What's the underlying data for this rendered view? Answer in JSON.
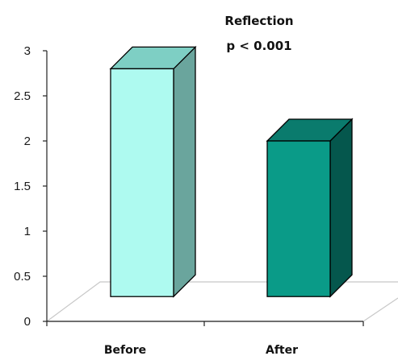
{
  "chart_data": {
    "type": "bar",
    "title": "Reflection",
    "subtitle": "p < 0.001",
    "categories": [
      "Before",
      "After"
    ],
    "values": [
      2.8,
      2.0
    ],
    "ylim": [
      0,
      3
    ],
    "yticks": [
      "0",
      "0.5",
      "1",
      "1.5",
      "2",
      "2.5",
      "3"
    ],
    "grid": false,
    "colors": {
      "bars": [
        {
          "front": "#aefaf0",
          "side": "#6aa59d",
          "top": "#7ecfc4"
        },
        {
          "front": "#0a9b88",
          "side": "#05574d",
          "top": "#0a7b6d"
        }
      ],
      "outline": "#000000",
      "floor": "#c8c8c8"
    }
  }
}
